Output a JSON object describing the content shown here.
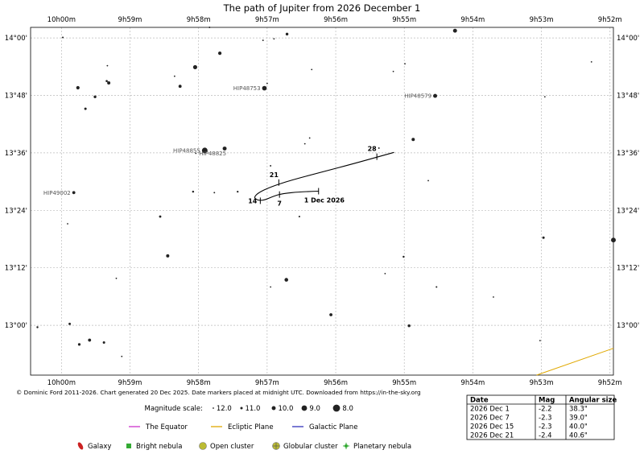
{
  "chart_data": {
    "type": "scatter",
    "title": "The path of Jupiter from 2026 December 1",
    "ra_tick_labels": [
      "10h00m",
      "9h59m",
      "9h58m",
      "9h57m",
      "9h56m",
      "9h55m",
      "9h54m",
      "9h53m",
      "9h52m"
    ],
    "ra_ticks_minutes": [
      600,
      599,
      598,
      597,
      596,
      595,
      594,
      593,
      592
    ],
    "dec_tick_labels": [
      "14°00'",
      "13°48'",
      "13°36'",
      "13°24'",
      "13°12'",
      "13°00'"
    ],
    "dec_ticks_arcmin": [
      840,
      828,
      816,
      804,
      792,
      780
    ],
    "ra_range_minutes": [
      600.45,
      591.95
    ],
    "dec_range_arcmin": [
      842.2,
      769.6
    ],
    "grid": true,
    "stars": [
      {
        "ra": 599.98,
        "dec": 840.1,
        "mag": 11.5,
        "label": ""
      },
      {
        "ra": 599.33,
        "dec": 834.2,
        "mag": 12.0,
        "label": ""
      },
      {
        "ra": 599.76,
        "dec": 829.6,
        "mag": 10.4,
        "label": ""
      },
      {
        "ra": 599.34,
        "dec": 831.0,
        "mag": 11.2,
        "label": ""
      },
      {
        "ra": 599.31,
        "dec": 830.6,
        "mag": 10.5,
        "label": ""
      },
      {
        "ra": 599.51,
        "dec": 827.7,
        "mag": 10.8,
        "label": ""
      },
      {
        "ra": 599.65,
        "dec": 825.2,
        "mag": 11.0,
        "label": ""
      },
      {
        "ra": 598.05,
        "dec": 833.9,
        "mag": 9.9,
        "label": ""
      },
      {
        "ra": 598.35,
        "dec": 832.0,
        "mag": 11.8,
        "label": ""
      },
      {
        "ra": 598.27,
        "dec": 829.9,
        "mag": 10.6,
        "label": ""
      },
      {
        "ra": 597.69,
        "dec": 836.8,
        "mag": 10.4,
        "label": ""
      },
      {
        "ra": 597.84,
        "dec": 842.2,
        "mag": 11.6,
        "label": ""
      },
      {
        "ra": 597.06,
        "dec": 839.5,
        "mag": 11.8,
        "label": ""
      },
      {
        "ra": 596.9,
        "dec": 839.8,
        "mag": 11.9,
        "label": ""
      },
      {
        "ra": 596.71,
        "dec": 840.8,
        "mag": 10.8,
        "label": ""
      },
      {
        "ra": 596.35,
        "dec": 833.4,
        "mag": 11.9,
        "label": ""
      },
      {
        "ra": 595.16,
        "dec": 833.0,
        "mag": 11.9,
        "label": ""
      },
      {
        "ra": 594.99,
        "dec": 834.6,
        "mag": 12.0,
        "label": ""
      },
      {
        "ra": 594.26,
        "dec": 841.5,
        "mag": 10.0,
        "label": ""
      },
      {
        "ra": 592.27,
        "dec": 835.0,
        "mag": 11.8,
        "label": ""
      },
      {
        "ra": 592.95,
        "dec": 827.7,
        "mag": 11.7,
        "label": ""
      },
      {
        "ra": 597.0,
        "dec": 830.5,
        "mag": 11.9,
        "label": ""
      },
      {
        "ra": 597.04,
        "dec": 829.5,
        "mag": 9.6,
        "label": "HIP48753"
      },
      {
        "ra": 594.55,
        "dec": 827.9,
        "mag": 10.0,
        "label": "HIP48579"
      },
      {
        "ra": 597.91,
        "dec": 816.5,
        "mag": 8.9,
        "label": "HIP48855"
      },
      {
        "ra": 597.62,
        "dec": 816.9,
        "mag": 10.0,
        "label": ""
      },
      {
        "ra": 598.04,
        "dec": 815.9,
        "mag": 12.0,
        "label": "HIP48825"
      },
      {
        "ra": 596.45,
        "dec": 817.9,
        "mag": 12.0,
        "label": ""
      },
      {
        "ra": 596.38,
        "dec": 819.1,
        "mag": 11.7,
        "label": ""
      },
      {
        "ra": 594.87,
        "dec": 818.8,
        "mag": 10.5,
        "label": ""
      },
      {
        "ra": 595.37,
        "dec": 817.0,
        "mag": 11.6,
        "label": ""
      },
      {
        "ra": 596.95,
        "dec": 813.3,
        "mag": 11.6,
        "label": ""
      },
      {
        "ra": 594.65,
        "dec": 810.2,
        "mag": 11.7,
        "label": ""
      },
      {
        "ra": 599.82,
        "dec": 807.7,
        "mag": 10.6,
        "label": "HIP49002"
      },
      {
        "ra": 598.08,
        "dec": 807.9,
        "mag": 11.3,
        "label": ""
      },
      {
        "ra": 597.77,
        "dec": 807.7,
        "mag": 11.6,
        "label": ""
      },
      {
        "ra": 597.43,
        "dec": 807.9,
        "mag": 11.4,
        "label": ""
      },
      {
        "ra": 598.56,
        "dec": 802.7,
        "mag": 11.1,
        "label": ""
      },
      {
        "ra": 596.53,
        "dec": 802.7,
        "mag": 11.5,
        "label": ""
      },
      {
        "ra": 599.91,
        "dec": 801.2,
        "mag": 11.8,
        "label": ""
      },
      {
        "ra": 598.45,
        "dec": 794.5,
        "mag": 10.5,
        "label": ""
      },
      {
        "ra": 592.97,
        "dec": 798.3,
        "mag": 11.0,
        "label": ""
      },
      {
        "ra": 591.95,
        "dec": 797.8,
        "mag": 9.5,
        "label": ""
      },
      {
        "ra": 595.01,
        "dec": 794.3,
        "mag": 11.3,
        "label": ""
      },
      {
        "ra": 596.72,
        "dec": 789.5,
        "mag": 10.2,
        "label": ""
      },
      {
        "ra": 595.28,
        "dec": 790.8,
        "mag": 11.9,
        "label": ""
      },
      {
        "ra": 599.2,
        "dec": 789.8,
        "mag": 11.9,
        "label": ""
      },
      {
        "ra": 596.95,
        "dec": 788.0,
        "mag": 11.8,
        "label": ""
      },
      {
        "ra": 594.53,
        "dec": 788.0,
        "mag": 11.5,
        "label": ""
      },
      {
        "ra": 593.7,
        "dec": 785.9,
        "mag": 11.8,
        "label": ""
      },
      {
        "ra": 596.07,
        "dec": 782.2,
        "mag": 10.6,
        "label": ""
      },
      {
        "ra": 599.88,
        "dec": 780.3,
        "mag": 11.1,
        "label": ""
      },
      {
        "ra": 600.35,
        "dec": 779.6,
        "mag": 11.3,
        "label": ""
      },
      {
        "ra": 594.93,
        "dec": 779.9,
        "mag": 10.8,
        "label": ""
      },
      {
        "ra": 599.38,
        "dec": 776.4,
        "mag": 11.0,
        "label": ""
      },
      {
        "ra": 599.59,
        "dec": 776.9,
        "mag": 10.6,
        "label": ""
      },
      {
        "ra": 599.74,
        "dec": 776.0,
        "mag": 10.9,
        "label": ""
      },
      {
        "ra": 599.12,
        "dec": 773.5,
        "mag": 11.8,
        "label": ""
      },
      {
        "ra": 593.02,
        "dec": 776.8,
        "mag": 11.8,
        "label": ""
      }
    ],
    "jupiter_path": [
      {
        "ra": 596.25,
        "dec": 808.0
      },
      {
        "ra": 596.5,
        "dec": 807.9
      },
      {
        "ra": 596.78,
        "dec": 807.5
      },
      {
        "ra": 596.9,
        "dec": 807.0
      },
      {
        "ra": 597.08,
        "dec": 805.9
      },
      {
        "ra": 597.2,
        "dec": 806.5
      },
      {
        "ra": 597.14,
        "dec": 807.6
      },
      {
        "ra": 596.95,
        "dec": 808.9
      },
      {
        "ra": 596.65,
        "dec": 810.3
      },
      {
        "ra": 596.2,
        "dec": 812.0
      },
      {
        "ra": 595.75,
        "dec": 813.7
      },
      {
        "ra": 595.35,
        "dec": 815.3
      },
      {
        "ra": 595.15,
        "dec": 816.1
      }
    ],
    "date_markers": [
      {
        "label": "1 Dec 2026",
        "ra": 596.25,
        "dec": 808.0,
        "placement": "below-right"
      },
      {
        "label": "7",
        "ra": 596.82,
        "dec": 807.3,
        "placement": "below"
      },
      {
        "label": "14",
        "ra": 597.1,
        "dec": 806.0,
        "placement": "left"
      },
      {
        "label": "21",
        "ra": 596.83,
        "dec": 809.8,
        "placement": "above-left"
      },
      {
        "label": "28",
        "ra": 595.4,
        "dec": 815.2,
        "placement": "above-left"
      }
    ],
    "ecliptic": [
      {
        "ra": 593.07,
        "dec": 769.6
      },
      {
        "ra": 591.95,
        "dec": 775.2
      }
    ],
    "credit": "© Dominic Ford 2011-2026. Chart generated 20 Dec 2025. Date markers placed at midnight UTC. Downloaded from https://in-the-sky.org",
    "magnitude_scale": {
      "title": "Magnitude scale:",
      "labels": [
        "12.0",
        "11.0",
        "10.0",
        "9.0",
        "8.0"
      ],
      "values": [
        12.0,
        11.0,
        10.0,
        9.0,
        8.0
      ]
    },
    "legend_lines": [
      {
        "label": "The Equator",
        "color": "#cc33cc"
      },
      {
        "label": "Ecliptic Plane",
        "color": "#e0a800"
      },
      {
        "label": "Galactic Plane",
        "color": "#3333bb"
      }
    ],
    "legend_objects": [
      {
        "label": "Galaxy",
        "icon": "galaxy-icon",
        "color": "#cc2222"
      },
      {
        "label": "Bright nebula",
        "icon": "bright-nebula-icon",
        "color": "#33aa33"
      },
      {
        "label": "Open cluster",
        "icon": "open-cluster-icon",
        "color": "#bbbb33"
      },
      {
        "label": "Globular cluster",
        "icon": "globular-cluster-icon",
        "color": "#bbbb33"
      },
      {
        "label": "Planetary nebula",
        "icon": "planetary-nebula-icon",
        "color": "#33aa33"
      }
    ],
    "table": {
      "headers": [
        "Date",
        "Mag",
        "Angular size"
      ],
      "rows": [
        [
          "2026 Dec 1",
          "-2.2",
          "38.3\""
        ],
        [
          "2026 Dec 7",
          "-2.3",
          "39.0\""
        ],
        [
          "2026 Dec 15",
          "-2.3",
          "40.0\""
        ],
        [
          "2026 Dec 21",
          "-2.4",
          "40.6\""
        ]
      ]
    }
  }
}
